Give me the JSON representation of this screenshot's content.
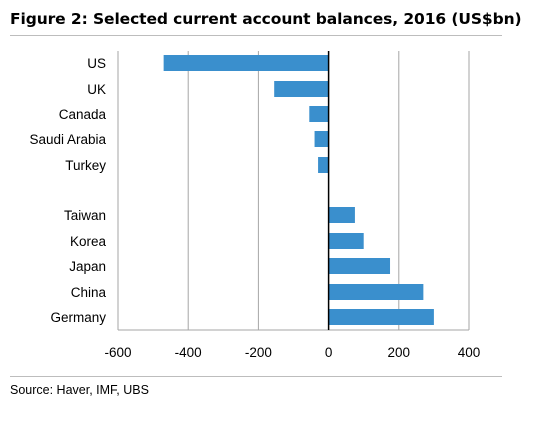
{
  "title": "Figure 2: Selected current account balances, 2016 (US$bn)",
  "source": "Source: Haver, IMF, UBS",
  "colors": {
    "bar": "#3a8fcd",
    "gridline": "#a6a6a6",
    "axis": "#000000",
    "rule": "#bdbdbd"
  },
  "chart_data": {
    "type": "bar",
    "orientation": "horizontal",
    "categories": [
      "US",
      "UK",
      "Canada",
      "Saudi Arabia",
      "Turkey",
      "Taiwan",
      "Korea",
      "Japan",
      "China",
      "Germany"
    ],
    "values": [
      -470,
      -155,
      -55,
      -40,
      -30,
      75,
      100,
      175,
      270,
      300
    ],
    "xlim": [
      -600,
      400
    ],
    "xticks": [
      -600,
      -400,
      -200,
      0,
      200,
      400
    ],
    "xtick_labels": [
      "-600",
      "-400",
      "-200",
      "0",
      "200",
      "400"
    ],
    "grid": "vertical",
    "title": "",
    "xlabel": "",
    "ylabel": ""
  }
}
